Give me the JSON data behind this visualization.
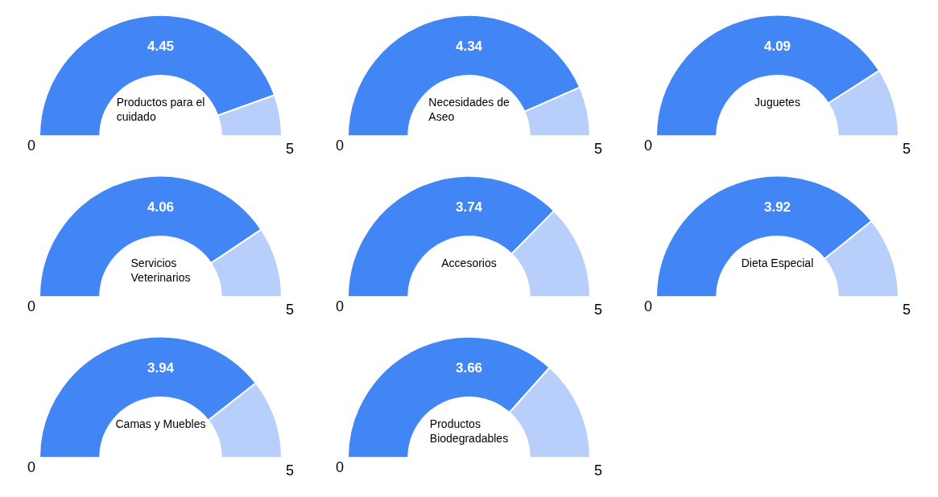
{
  "chart_data": [
    {
      "type": "donut",
      "title": "Productos para el cuidado",
      "categories": [
        null,
        null
      ],
      "values": [
        4.45,
        0.55
      ],
      "colors": [
        "#4285f4",
        "#b7cffa"
      ],
      "value_labels": [
        "4.45",
        null
      ],
      "annotations": [
        "0",
        "5"
      ]
    },
    {
      "type": "donut",
      "title": "Necesidades de Aseo",
      "categories": [
        null,
        null
      ],
      "values": [
        4.34,
        0.66
      ],
      "colors": [
        "#4285f4",
        "#b7cffa"
      ],
      "value_labels": [
        "4.34",
        null
      ],
      "annotations": [
        "0",
        "5"
      ]
    },
    {
      "type": "donut",
      "title": "Juguetes",
      "categories": [
        null,
        null
      ],
      "values": [
        4.09,
        0.91
      ],
      "colors": [
        "#4285f4",
        "#b7cffa"
      ],
      "value_labels": [
        "4.09",
        null
      ],
      "annotations": [
        "0",
        "5"
      ]
    },
    {
      "type": "donut",
      "title": "Servicios Veterinarios",
      "categories": [
        null,
        null
      ],
      "values": [
        4.06,
        0.94
      ],
      "colors": [
        "#4285f4",
        "#b7cffa"
      ],
      "value_labels": [
        "4.06",
        null
      ],
      "annotations": [
        "0",
        "5"
      ]
    },
    {
      "type": "donut",
      "title": "Accesorios",
      "categories": [
        null,
        null
      ],
      "values": [
        3.74,
        1.26
      ],
      "colors": [
        "#4285f4",
        "#b7cffa"
      ],
      "value_labels": [
        "3.74",
        null
      ],
      "annotations": [
        "0",
        "5"
      ]
    },
    {
      "type": "donut",
      "title": "Dieta Especial",
      "categories": [
        null,
        null
      ],
      "values": [
        3.92,
        1.08
      ],
      "colors": [
        "#4285f4",
        "#b7cffa"
      ],
      "value_labels": [
        "3.92",
        null
      ],
      "annotations": [
        "0",
        "5"
      ]
    },
    {
      "type": "donut",
      "title": "Camas y Muebles",
      "categories": [
        null,
        null
      ],
      "values": [
        3.94,
        1.06
      ],
      "colors": [
        "#4285f4",
        "#b7cffa"
      ],
      "value_labels": [
        "3.94",
        null
      ],
      "annotations": [
        "0",
        "5"
      ]
    },
    {
      "type": "donut",
      "title": "Productos Biodegradables",
      "categories": [
        null,
        null
      ],
      "values": [
        3.66,
        1.34
      ],
      "colors": [
        "#4285f4",
        "#b7cffa"
      ],
      "value_labels": [
        "3.66",
        null
      ],
      "annotations": [
        "0",
        "5"
      ]
    }
  ]
}
